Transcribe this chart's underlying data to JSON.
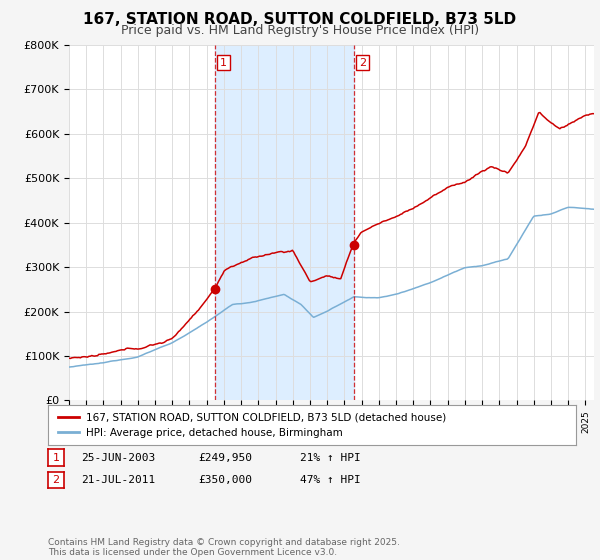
{
  "title": "167, STATION ROAD, SUTTON COLDFIELD, B73 5LD",
  "subtitle": "Price paid vs. HM Land Registry's House Price Index (HPI)",
  "ylabel_ticks": [
    "£0",
    "£100K",
    "£200K",
    "£300K",
    "£400K",
    "£500K",
    "£600K",
    "£700K",
    "£800K"
  ],
  "ytick_values": [
    0,
    100000,
    200000,
    300000,
    400000,
    500000,
    600000,
    700000,
    800000
  ],
  "ylim": [
    0,
    800000
  ],
  "xlim_start": 1995.0,
  "xlim_end": 2025.5,
  "red_color": "#cc0000",
  "blue_color": "#7aafd4",
  "shade_color": "#ddeeff",
  "bg_color": "#ffffff",
  "grid_color": "#dddddd",
  "marker1_x": 2003.48,
  "marker1_y": 249950,
  "marker2_x": 2011.55,
  "marker2_y": 350000,
  "legend_label_red": "167, STATION ROAD, SUTTON COLDFIELD, B73 5LD (detached house)",
  "legend_label_blue": "HPI: Average price, detached house, Birmingham",
  "table_row1": [
    "1",
    "25-JUN-2003",
    "£249,950",
    "21% ↑ HPI"
  ],
  "table_row2": [
    "2",
    "21-JUL-2011",
    "£350,000",
    "47% ↑ HPI"
  ],
  "footnote": "Contains HM Land Registry data © Crown copyright and database right 2025.\nThis data is licensed under the Open Government Licence v3.0.",
  "vline1_x": 2003.48,
  "vline2_x": 2011.55,
  "title_fontsize": 11,
  "subtitle_fontsize": 9,
  "tick_fontsize": 8
}
